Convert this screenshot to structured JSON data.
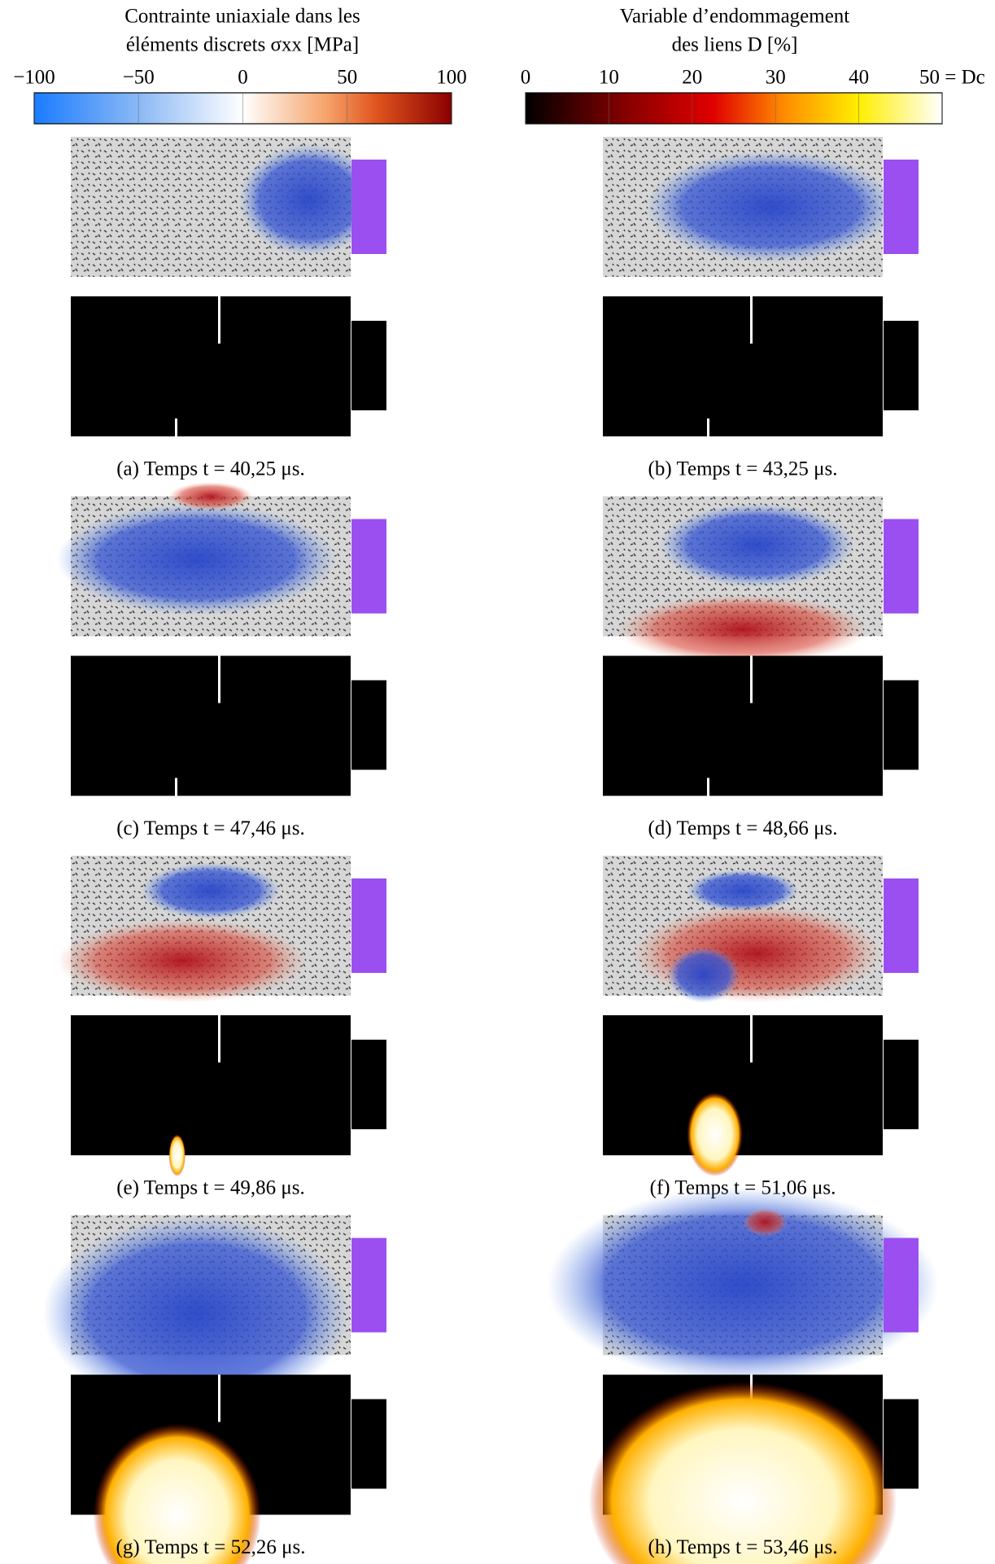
{
  "figure": {
    "colorbars": [
      {
        "title": [
          "Contrainte uniaxiale dans les",
          "éléments discrets σxx [MPa]"
        ],
        "lim": [
          -100,
          100
        ],
        "ticks": [
          {
            "value": -100,
            "label": "−100"
          },
          {
            "value": -50,
            "label": "−50"
          },
          0,
          50,
          100
        ]
      },
      {
        "title": [
          "Variable d’endommagement",
          "des liens D [%]"
        ],
        "lim": [
          0,
          50
        ],
        "ticks": [
          0,
          10,
          20,
          30,
          40,
          {
            "value": 50,
            "label": "50 = Dc"
          }
        ]
      }
    ],
    "panels": [
      {
        "caption": "(a) Temps t = 40,25 μs."
      },
      {
        "caption": "(b) Temps t = 43,25 μs."
      },
      {
        "caption": "(c) Temps t = 47,46 μs."
      },
      {
        "caption": "(d) Temps t = 48,66 μs."
      },
      {
        "caption": "(e) Temps t = 49,86 μs."
      },
      {
        "caption": "(f) Temps t = 51,06 μs."
      },
      {
        "caption": "(g) Temps t = 52,26 μs."
      },
      {
        "caption": "(h) Temps t = 53,46 μs."
      }
    ]
  }
}
